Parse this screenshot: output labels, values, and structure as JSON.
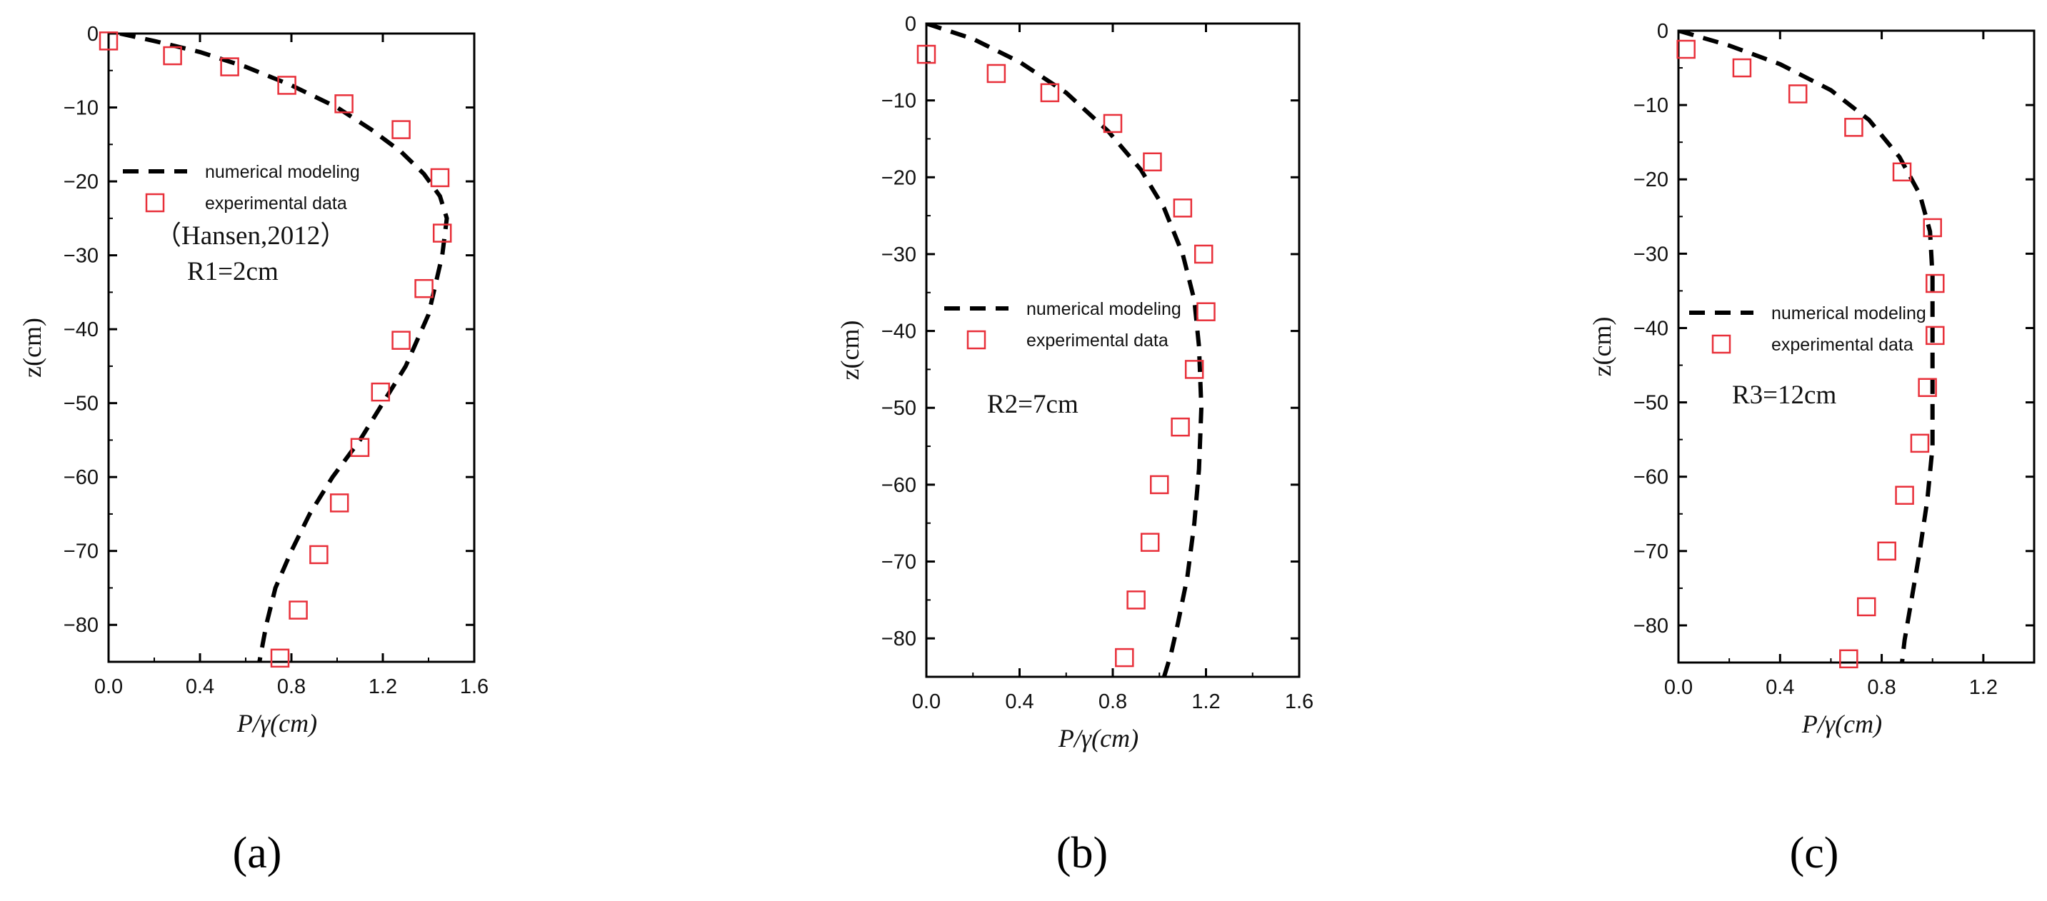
{
  "colors": {
    "model_line": "#000000",
    "experiment_marker": "#e8303a",
    "axes": "#000000"
  },
  "chart_data": [
    {
      "type": "line",
      "panel_label": "(a)",
      "xlabel": "P/γ(cm)",
      "ylabel": "z(cm)",
      "xlim": [
        0,
        1.6
      ],
      "ylim": [
        -85,
        0
      ],
      "xticks": [
        "0.0",
        "0.4",
        "0.8",
        "1.2",
        "1.6"
      ],
      "yticks": [
        "0",
        "−10",
        "−20",
        "−30",
        "−40",
        "−50",
        "−60",
        "−70",
        "−80"
      ],
      "grid": false,
      "legend_position": "center-left",
      "annotations": [
        "（Hansen,2012）",
        "R1=2cm"
      ],
      "series": [
        {
          "name": "numerical modeling",
          "style": "dashed",
          "points": [
            [
              0.05,
              0
            ],
            [
              0.2,
              -1
            ],
            [
              0.4,
              -2.5
            ],
            [
              0.6,
              -4.5
            ],
            [
              0.8,
              -7
            ],
            [
              1.0,
              -10
            ],
            [
              1.15,
              -13
            ],
            [
              1.28,
              -16
            ],
            [
              1.38,
              -19
            ],
            [
              1.45,
              -22
            ],
            [
              1.48,
              -25
            ],
            [
              1.46,
              -30
            ],
            [
              1.4,
              -38
            ],
            [
              1.3,
              -45
            ],
            [
              1.2,
              -50
            ],
            [
              1.1,
              -55
            ],
            [
              0.98,
              -60
            ],
            [
              0.88,
              -65
            ],
            [
              0.8,
              -70
            ],
            [
              0.73,
              -75
            ],
            [
              0.69,
              -80
            ],
            [
              0.66,
              -85
            ]
          ]
        },
        {
          "name": "experimental data",
          "style": "open-square",
          "points": [
            [
              0.0,
              -1
            ],
            [
              0.28,
              -3
            ],
            [
              0.53,
              -4.5
            ],
            [
              0.78,
              -7
            ],
            [
              1.03,
              -9.5
            ],
            [
              1.28,
              -13
            ],
            [
              1.45,
              -19.5
            ],
            [
              1.46,
              -27
            ],
            [
              1.38,
              -34.5
            ],
            [
              1.28,
              -41.5
            ],
            [
              1.19,
              -48.5
            ],
            [
              1.1,
              -56
            ],
            [
              1.01,
              -63.5
            ],
            [
              0.92,
              -70.5
            ],
            [
              0.83,
              -78
            ],
            [
              0.75,
              -84.5
            ]
          ]
        }
      ]
    },
    {
      "type": "line",
      "panel_label": "(b)",
      "xlabel": "P/γ(cm)",
      "ylabel": "z(cm)",
      "xlim": [
        0,
        1.6
      ],
      "ylim": [
        -85,
        0
      ],
      "xticks": [
        "0.0",
        "0.4",
        "0.8",
        "1.2",
        "1.6"
      ],
      "yticks": [
        "0",
        "−10",
        "−20",
        "−30",
        "−40",
        "−50",
        "−60",
        "−70",
        "−80"
      ],
      "grid": false,
      "legend_position": "center-left",
      "annotations": [
        "R2=7cm"
      ],
      "series": [
        {
          "name": "numerical modeling",
          "style": "dashed",
          "points": [
            [
              0.0,
              0
            ],
            [
              0.2,
              -2
            ],
            [
              0.4,
              -5
            ],
            [
              0.6,
              -9
            ],
            [
              0.78,
              -14
            ],
            [
              0.92,
              -19
            ],
            [
              1.02,
              -24
            ],
            [
              1.1,
              -30
            ],
            [
              1.15,
              -36
            ],
            [
              1.17,
              -42
            ],
            [
              1.18,
              -50
            ],
            [
              1.17,
              -58
            ],
            [
              1.15,
              -65
            ],
            [
              1.12,
              -72
            ],
            [
              1.08,
              -78
            ],
            [
              1.05,
              -82
            ],
            [
              1.02,
              -85
            ]
          ]
        },
        {
          "name": "experimental data",
          "style": "open-square",
          "points": [
            [
              0.0,
              -4
            ],
            [
              0.3,
              -6.5
            ],
            [
              0.53,
              -9
            ],
            [
              0.8,
              -13
            ],
            [
              0.97,
              -18
            ],
            [
              1.1,
              -24
            ],
            [
              1.19,
              -30
            ],
            [
              1.2,
              -37.5
            ],
            [
              1.15,
              -45
            ],
            [
              1.09,
              -52.5
            ],
            [
              1.0,
              -60
            ],
            [
              0.96,
              -67.5
            ],
            [
              0.9,
              -75
            ],
            [
              0.85,
              -82.5
            ]
          ]
        }
      ]
    },
    {
      "type": "line",
      "panel_label": "(c)",
      "xlabel": "P/γ(cm)",
      "ylabel": "z(cm)",
      "xlim": [
        0,
        1.4
      ],
      "ylim": [
        -85,
        0
      ],
      "xticks": [
        "0.0",
        "0.4",
        "0.8",
        "1.2"
      ],
      "yticks": [
        "0",
        "−10",
        "−20",
        "−30",
        "−40",
        "−50",
        "−60",
        "−70",
        "−80"
      ],
      "grid": false,
      "legend_position": "center-left",
      "annotations": [
        "R3=12cm"
      ],
      "series": [
        {
          "name": "numerical modeling",
          "style": "dashed",
          "points": [
            [
              0.0,
              0
            ],
            [
              0.2,
              -2
            ],
            [
              0.4,
              -4.5
            ],
            [
              0.6,
              -8
            ],
            [
              0.75,
              -12
            ],
            [
              0.87,
              -17
            ],
            [
              0.95,
              -22
            ],
            [
              0.99,
              -27
            ],
            [
              1.0,
              -33
            ],
            [
              1.0,
              -40
            ],
            [
              1.0,
              -48
            ],
            [
              1.0,
              -56
            ],
            [
              0.98,
              -63
            ],
            [
              0.95,
              -70
            ],
            [
              0.92,
              -76
            ],
            [
              0.89,
              -82
            ],
            [
              0.88,
              -85
            ]
          ]
        },
        {
          "name": "experimental data",
          "style": "open-square",
          "points": [
            [
              0.03,
              -2.5
            ],
            [
              0.25,
              -5
            ],
            [
              0.47,
              -8.5
            ],
            [
              0.69,
              -13
            ],
            [
              0.88,
              -19
            ],
            [
              1.0,
              -26.5
            ],
            [
              1.01,
              -34
            ],
            [
              1.01,
              -41
            ],
            [
              0.98,
              -48
            ],
            [
              0.95,
              -55.5
            ],
            [
              0.89,
              -62.5
            ],
            [
              0.82,
              -70
            ],
            [
              0.74,
              -77.5
            ],
            [
              0.67,
              -84.5
            ]
          ]
        }
      ]
    }
  ]
}
